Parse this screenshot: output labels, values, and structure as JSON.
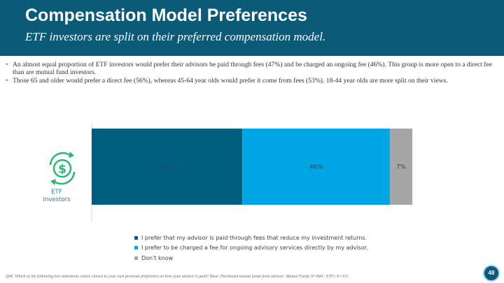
{
  "header": {
    "title": "Compensation Model Preferences",
    "subtitle": "ETF investors are split on their preferred compensation model."
  },
  "bullets": [
    "An almost equal proportion of ETF investors would prefer their advisors be paid through fees (47%) and be charged an ongoing fee (46%). This group is more open to a direct fee than are mutual fund investors.",
    "Those 65 and older would prefer a direct fee (56%), whereas 45-64 year olds would prefer it come from fees (53%). 18-44 year olds are more split on their views."
  ],
  "category": {
    "line1": "ETF",
    "line2": "Investors",
    "icon": "dollar-cycle-icon"
  },
  "chart_data": {
    "type": "bar",
    "orientation": "horizontal",
    "stacked": true,
    "categories": [
      "ETF Investors"
    ],
    "series": [
      {
        "name": "I prefer that my advisor is paid through fees that reduce my investment returns.",
        "values": [
          47
        ],
        "label": "47%",
        "color": "#005e7f"
      },
      {
        "name": "I prefer to be charged a fee for ongoing advisory services directly by my advisor.",
        "values": [
          46
        ],
        "label": "46%",
        "color": "#00a6e4"
      },
      {
        "name": "Don't know",
        "values": [
          7
        ],
        "label": "7%",
        "color": "#a6a6a6"
      }
    ],
    "xlim": [
      0,
      100
    ],
    "legend_position": "bottom",
    "title": "",
    "xlabel": "",
    "ylabel": ""
  },
  "footnote": "Q46. Which of the following two statements comes closest to your own personal preference on how your advisor is paid? Base: Purchased mutual funds from advisor: Mutual Funds N=844 ; ETFs N=331",
  "page_number": "48",
  "colors": {
    "header_bg": "#0b5a78",
    "icon": "#2bb673",
    "axis": "#d9d9d9"
  }
}
